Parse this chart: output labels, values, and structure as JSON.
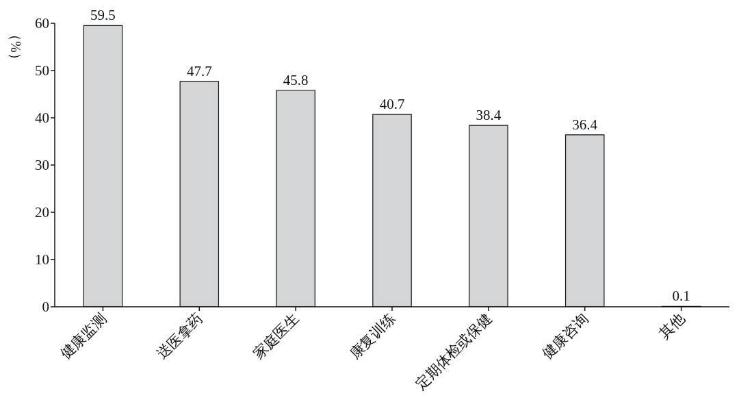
{
  "chart_data": {
    "type": "bar",
    "ylabel": "（%）",
    "categories": [
      "健康监测",
      "送医拿药",
      "家庭医生",
      "康复训练",
      "定期体检或保健",
      "健康咨询",
      "其他"
    ],
    "values": [
      59.5,
      47.7,
      45.8,
      40.7,
      38.4,
      36.4,
      0.1
    ],
    "color": "#d4d5d7",
    "ylim": [
      0,
      60
    ],
    "yticks": [
      0,
      10,
      20,
      30,
      40,
      50,
      60
    ],
    "data_labels": true,
    "grid": false
  }
}
